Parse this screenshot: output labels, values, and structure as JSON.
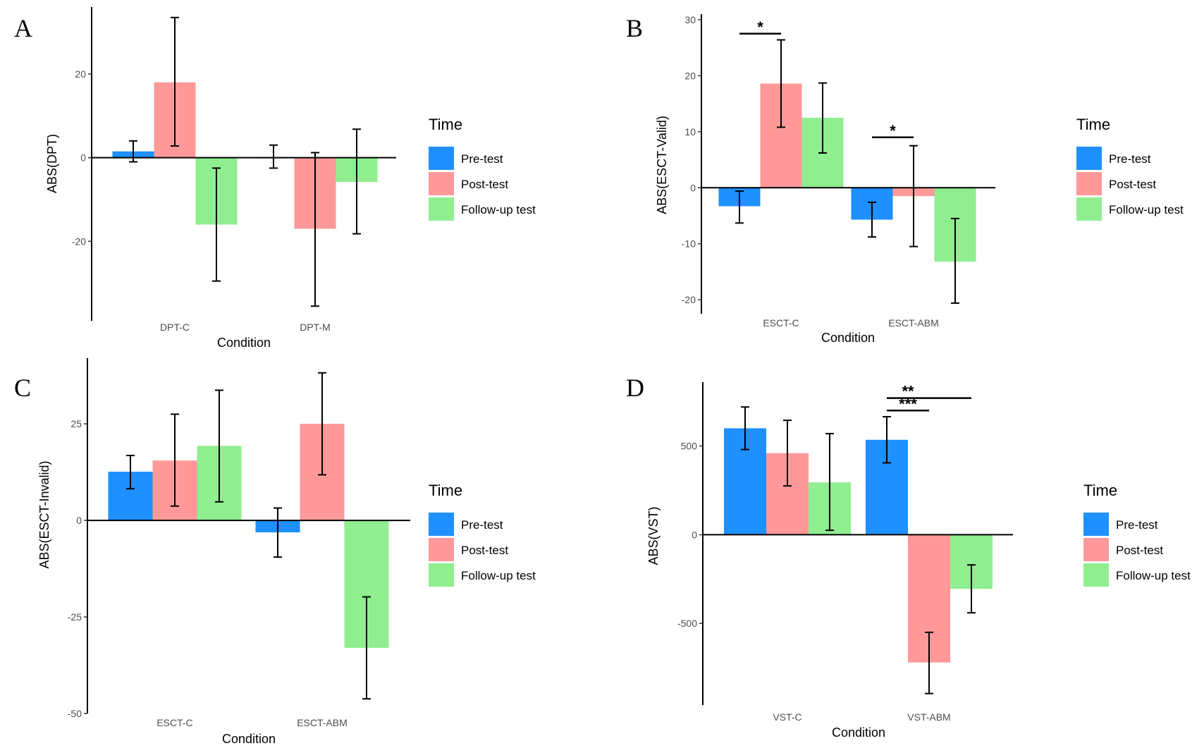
{
  "chart_data": [
    {
      "panel": "A",
      "type": "bar",
      "xlabel": "Condition",
      "ylabel": "ABS(DPT)",
      "categories": [
        "DPT-C",
        "DPT-M"
      ],
      "yticks": [
        -20,
        0,
        20
      ],
      "ylim": [
        -39,
        36
      ],
      "series": [
        {
          "name": "Pre-test",
          "values": [
            1.5,
            0
          ],
          "err_low": [
            -1,
            -2.5
          ],
          "err_high": [
            4,
            3
          ]
        },
        {
          "name": "Post-test",
          "values": [
            18,
            -17
          ],
          "err_low": [
            2.8,
            -35.5
          ],
          "err_high": [
            33.5,
            1.2
          ]
        },
        {
          "name": "Follow-up test",
          "values": [
            -16,
            -5.8
          ],
          "err_low": [
            -29.5,
            -18.2
          ],
          "err_high": [
            -2.5,
            6.8
          ]
        }
      ],
      "significance": [],
      "legend": {
        "title": "Time",
        "position": "right"
      }
    },
    {
      "panel": "B",
      "type": "bar",
      "xlabel": "Condition",
      "ylabel": "ABS(ESCT-Valid)",
      "categories": [
        "ESCT-C",
        "ESCT-ABM"
      ],
      "yticks": [
        -20,
        -10,
        0,
        10,
        20,
        30
      ],
      "ylim": [
        -22.5,
        31
      ],
      "series": [
        {
          "name": "Pre-test",
          "values": [
            -3.3,
            -5.7
          ],
          "err_low": [
            -6.3,
            -8.8
          ],
          "err_high": [
            -0.6,
            -2.6
          ]
        },
        {
          "name": "Post-test",
          "values": [
            18.6,
            -1.5
          ],
          "err_low": [
            10.8,
            -10.5
          ],
          "err_high": [
            26.4,
            7.5
          ]
        },
        {
          "name": "Follow-up test",
          "values": [
            12.5,
            -13.2
          ],
          "err_low": [
            6.2,
            -20.6
          ],
          "err_high": [
            18.7,
            -5.5
          ]
        }
      ],
      "significance": [
        {
          "label": "*",
          "category": 0,
          "from_series": 0,
          "to_series": 1,
          "y": 27.5
        },
        {
          "label": "*",
          "category": 1,
          "from_series": 0,
          "to_series": 1,
          "y": 9
        }
      ],
      "legend": {
        "title": "Time",
        "position": "right"
      }
    },
    {
      "panel": "C",
      "type": "bar",
      "xlabel": "Condition",
      "ylabel": "ABS(ESCT-Invalid)",
      "categories": [
        "ESCT-C",
        "ESCT-ABM"
      ],
      "yticks": [
        -50,
        -25,
        0,
        25
      ],
      "ylim": [
        -50,
        42
      ],
      "series": [
        {
          "name": "Pre-test",
          "values": [
            12.6,
            -3.1
          ],
          "err_low": [
            8.2,
            -9.5
          ],
          "err_high": [
            16.8,
            3.2
          ]
        },
        {
          "name": "Post-test",
          "values": [
            15.5,
            25
          ],
          "err_low": [
            3.7,
            11.8
          ],
          "err_high": [
            27.5,
            38.2
          ]
        },
        {
          "name": "Follow-up test",
          "values": [
            19.3,
            -33
          ],
          "err_low": [
            4.8,
            -46.2
          ],
          "err_high": [
            33.7,
            -19.8
          ]
        }
      ],
      "significance": [],
      "legend": {
        "title": "Time",
        "position": "right"
      }
    },
    {
      "panel": "D",
      "type": "bar",
      "xlabel": "Condition",
      "ylabel": "ABS(VST)",
      "categories": [
        "VST-C",
        "VST-ABM"
      ],
      "yticks": [
        -500,
        0,
        500
      ],
      "ylim": [
        -960,
        860
      ],
      "series": [
        {
          "name": "Pre-test",
          "values": [
            600,
            535
          ],
          "err_low": [
            480,
            405
          ],
          "err_high": [
            720,
            665
          ]
        },
        {
          "name": "Post-test",
          "values": [
            460,
            -720
          ],
          "err_low": [
            275,
            -895
          ],
          "err_high": [
            645,
            -550
          ]
        },
        {
          "name": "Follow-up test",
          "values": [
            295,
            -305
          ],
          "err_low": [
            25,
            -440
          ],
          "err_high": [
            570,
            -170
          ]
        }
      ],
      "significance": [
        {
          "label": "***",
          "category": 1,
          "from_series": 0,
          "to_series": 1,
          "y": 700
        },
        {
          "label": "**",
          "category": 1,
          "from_series": 0,
          "to_series": 2,
          "y": 770
        }
      ],
      "legend": {
        "title": "Time",
        "position": "right"
      }
    }
  ],
  "colors": {
    "Pre-test": "#1e90ff",
    "Post-test": "#ff9999",
    "Follow-up test": "#90ee90"
  }
}
